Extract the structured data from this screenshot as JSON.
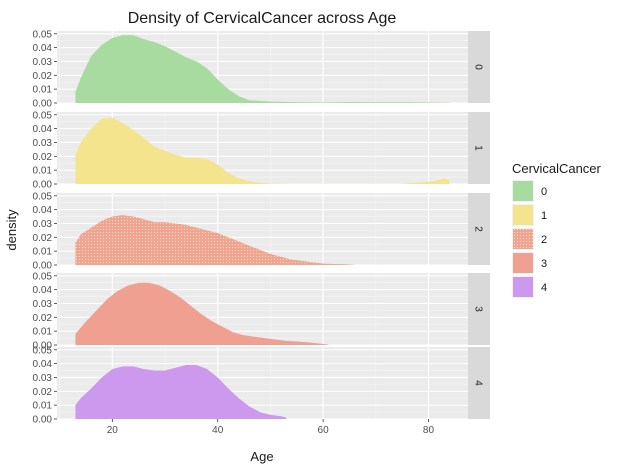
{
  "chart_data": {
    "type": "area",
    "title": "Density of CervicalCancer across Age",
    "xlabel": "Age",
    "ylabel": "density",
    "xlim": [
      9.5,
      87.5
    ],
    "ylim": [
      0,
      0.052
    ],
    "x_ticks": [
      20,
      40,
      60,
      80
    ],
    "x_tick_labels": [
      "20",
      "40",
      "60",
      "80"
    ],
    "y_ticks": [
      0,
      0.01,
      0.02,
      0.03,
      0.04,
      0.05
    ],
    "y_tick_labels": [
      "0.00",
      "0.01",
      "0.02",
      "0.03",
      "0.04",
      "0.05"
    ],
    "facet_by": "CervicalCancer",
    "grid": true,
    "legend": {
      "title": "CervicalCancer",
      "position": "right",
      "entries": [
        "0",
        "1",
        "2",
        "3",
        "4"
      ]
    },
    "series": [
      {
        "name": "0",
        "color": "#a8dba0",
        "pattern": "none",
        "points": [
          [
            13,
            0.008
          ],
          [
            14,
            0.018
          ],
          [
            15,
            0.026
          ],
          [
            16,
            0.034
          ],
          [
            18,
            0.042
          ],
          [
            20,
            0.047
          ],
          [
            22,
            0.049
          ],
          [
            24,
            0.049
          ],
          [
            26,
            0.046
          ],
          [
            28,
            0.044
          ],
          [
            30,
            0.041
          ],
          [
            32,
            0.037
          ],
          [
            34,
            0.033
          ],
          [
            36,
            0.03
          ],
          [
            38,
            0.025
          ],
          [
            40,
            0.017
          ],
          [
            42,
            0.01
          ],
          [
            44,
            0.005
          ],
          [
            46,
            0.002
          ],
          [
            50,
            0.001
          ],
          [
            55,
            0.0006
          ],
          [
            60,
            0.0004
          ],
          [
            65,
            0.0007
          ],
          [
            70,
            0.0005
          ],
          [
            75,
            0.0006
          ],
          [
            80,
            0.0004
          ],
          [
            84,
            0.0002
          ]
        ]
      },
      {
        "name": "1",
        "color": "#f4e48e",
        "pattern": "none",
        "points": [
          [
            13,
            0.021
          ],
          [
            14,
            0.03
          ],
          [
            16,
            0.04
          ],
          [
            18,
            0.047
          ],
          [
            20,
            0.048
          ],
          [
            22,
            0.044
          ],
          [
            24,
            0.039
          ],
          [
            26,
            0.033
          ],
          [
            28,
            0.027
          ],
          [
            30,
            0.024
          ],
          [
            32,
            0.021
          ],
          [
            34,
            0.019
          ],
          [
            36,
            0.019
          ],
          [
            38,
            0.018
          ],
          [
            40,
            0.014
          ],
          [
            42,
            0.008
          ],
          [
            44,
            0.004
          ],
          [
            46,
            0.002
          ],
          [
            48,
            0.0008
          ],
          [
            50,
            0.0003
          ],
          [
            54,
            0.0001
          ],
          [
            75,
            0.0001
          ],
          [
            78,
            0.001
          ],
          [
            81,
            0.002
          ],
          [
            83,
            0.004
          ],
          [
            84,
            0.003
          ]
        ]
      },
      {
        "name": "2",
        "color": "#f0a58f",
        "pattern": "dots",
        "points": [
          [
            13,
            0.016
          ],
          [
            14,
            0.022
          ],
          [
            16,
            0.027
          ],
          [
            18,
            0.032
          ],
          [
            20,
            0.035
          ],
          [
            22,
            0.036
          ],
          [
            24,
            0.035
          ],
          [
            26,
            0.033
          ],
          [
            28,
            0.031
          ],
          [
            30,
            0.031
          ],
          [
            32,
            0.03
          ],
          [
            34,
            0.029
          ],
          [
            36,
            0.027
          ],
          [
            38,
            0.025
          ],
          [
            40,
            0.023
          ],
          [
            42,
            0.02
          ],
          [
            44,
            0.017
          ],
          [
            46,
            0.014
          ],
          [
            48,
            0.011
          ],
          [
            50,
            0.008
          ],
          [
            52,
            0.006
          ],
          [
            54,
            0.004
          ],
          [
            56,
            0.003
          ],
          [
            58,
            0.002
          ],
          [
            60,
            0.001
          ],
          [
            62,
            0.0007
          ],
          [
            64,
            0.0005
          ],
          [
            66,
            0.0001
          ]
        ]
      },
      {
        "name": "3",
        "color": "#f0a090",
        "pattern": "none",
        "points": [
          [
            13,
            0.008
          ],
          [
            15,
            0.017
          ],
          [
            17,
            0.025
          ],
          [
            19,
            0.033
          ],
          [
            21,
            0.039
          ],
          [
            23,
            0.043
          ],
          [
            25,
            0.045
          ],
          [
            27,
            0.045
          ],
          [
            29,
            0.043
          ],
          [
            31,
            0.039
          ],
          [
            33,
            0.034
          ],
          [
            35,
            0.028
          ],
          [
            37,
            0.022
          ],
          [
            39,
            0.017
          ],
          [
            41,
            0.013
          ],
          [
            43,
            0.009
          ],
          [
            45,
            0.007
          ],
          [
            47,
            0.006
          ],
          [
            49,
            0.005
          ],
          [
            51,
            0.004
          ],
          [
            53,
            0.003
          ],
          [
            55,
            0.0025
          ],
          [
            57,
            0.002
          ],
          [
            59,
            0.0012
          ],
          [
            61,
            0.0003
          ]
        ]
      },
      {
        "name": "4",
        "color": "#cc99ee",
        "pattern": "none",
        "points": [
          [
            13,
            0.01
          ],
          [
            14,
            0.015
          ],
          [
            16,
            0.022
          ],
          [
            18,
            0.03
          ],
          [
            20,
            0.036
          ],
          [
            22,
            0.038
          ],
          [
            24,
            0.038
          ],
          [
            26,
            0.036
          ],
          [
            28,
            0.035
          ],
          [
            30,
            0.035
          ],
          [
            32,
            0.037
          ],
          [
            34,
            0.039
          ],
          [
            36,
            0.039
          ],
          [
            38,
            0.036
          ],
          [
            40,
            0.03
          ],
          [
            42,
            0.022
          ],
          [
            44,
            0.015
          ],
          [
            46,
            0.009
          ],
          [
            48,
            0.005
          ],
          [
            50,
            0.003
          ],
          [
            52,
            0.002
          ],
          [
            53,
            0.001
          ]
        ]
      }
    ]
  }
}
